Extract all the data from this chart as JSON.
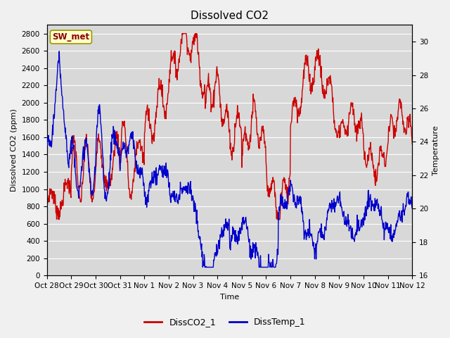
{
  "title": "Dissolved CO2",
  "xlabel": "Time",
  "ylabel_left": "Dissolved CO2 (ppm)",
  "ylabel_right": "Temperature",
  "annotation": "SW_met",
  "legend_labels": [
    "DissCO2_1",
    "DissTemp_1"
  ],
  "co2_color": "#cc0000",
  "temp_color": "#0000cc",
  "background_color": "#d8d8d8",
  "fig_background": "#f0f0f0",
  "ylim_left": [
    0,
    2900
  ],
  "ylim_right": [
    16,
    31
  ],
  "yticks_left": [
    0,
    200,
    400,
    600,
    800,
    1000,
    1200,
    1400,
    1600,
    1800,
    2000,
    2200,
    2400,
    2600,
    2800
  ],
  "yticks_right": [
    16,
    18,
    20,
    22,
    24,
    26,
    28,
    30
  ],
  "xtick_labels": [
    "Oct 28",
    "Oct 29",
    "Oct 30",
    "Oct 31",
    "Nov 1",
    "Nov 2",
    "Nov 3",
    "Nov 4",
    "Nov 5",
    "Nov 6",
    "Nov 7",
    "Nov 8",
    "Nov 9",
    "Nov 10",
    "Nov 11",
    "Nov 12"
  ],
  "title_fontsize": 11,
  "axis_fontsize": 8,
  "tick_fontsize": 7.5,
  "legend_fontsize": 9,
  "annotation_fontsize": 8.5
}
